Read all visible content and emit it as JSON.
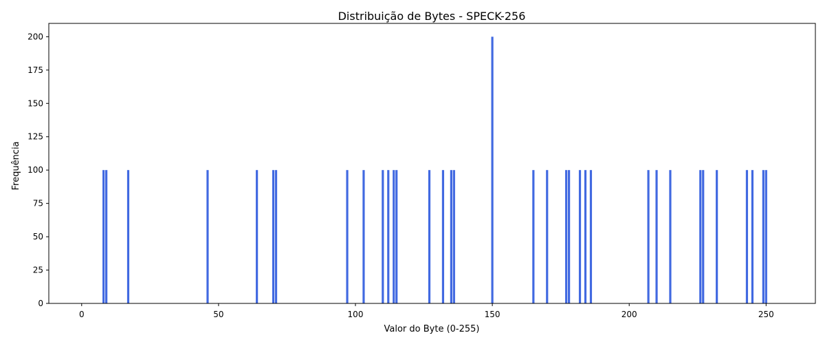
{
  "chart_data": {
    "type": "bar",
    "title": "Distribuição de Bytes - SPECK-256",
    "xlabel": "Valor do Byte (0-255)",
    "ylabel": "Frequência",
    "xlim": [
      -12,
      268
    ],
    "ylim": [
      0,
      210
    ],
    "xticks": [
      0,
      50,
      100,
      150,
      200,
      250
    ],
    "yticks": [
      0,
      25,
      50,
      75,
      100,
      125,
      150,
      175,
      200
    ],
    "grid": false,
    "bar_color": "#4169e1",
    "x": [
      8,
      9,
      17,
      46,
      64,
      70,
      71,
      97,
      103,
      110,
      112,
      114,
      115,
      127,
      132,
      135,
      136,
      150,
      165,
      170,
      177,
      178,
      182,
      184,
      186,
      207,
      210,
      215,
      226,
      227,
      232,
      243,
      245,
      249,
      250
    ],
    "values": [
      100,
      100,
      100,
      100,
      100,
      100,
      100,
      100,
      100,
      100,
      100,
      100,
      100,
      100,
      100,
      100,
      100,
      200,
      100,
      100,
      100,
      100,
      100,
      100,
      100,
      100,
      100,
      100,
      100,
      100,
      100,
      100,
      100,
      100,
      100
    ]
  }
}
